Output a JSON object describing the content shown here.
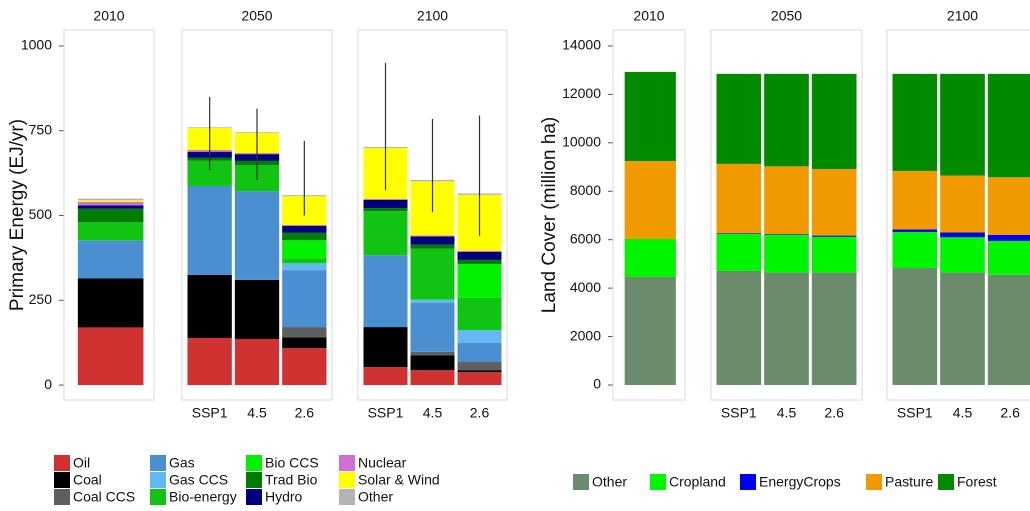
{
  "chart_data": [
    {
      "type": "bar",
      "stacked": true,
      "y_label": "Primary Energy (EJ/yr)",
      "facets": [
        {
          "label": "2010",
          "categories": [
            null
          ]
        },
        {
          "label": "2050",
          "categories": [
            "SSP1",
            "4.5",
            "2.6"
          ]
        },
        {
          "label": "2100",
          "categories": [
            "SSP1",
            "4.5",
            "2.6"
          ]
        }
      ],
      "ylim": [
        -44,
        1047
      ],
      "yticks": [
        0,
        250,
        500,
        750,
        1000
      ],
      "series": [
        {
          "name": "Oil",
          "color": "#d03232",
          "values": [
            170,
            139,
            136,
            109,
            53,
            44,
            38
          ]
        },
        {
          "name": "Coal",
          "color": "#000000",
          "values": [
            145,
            186,
            174,
            32,
            118,
            44,
            6
          ]
        },
        {
          "name": "Coal CCS",
          "color": "#5f5f5f",
          "values": [
            0,
            0,
            0,
            30,
            0,
            10,
            24
          ]
        },
        {
          "name": "Gas",
          "color": "#4a8fd0",
          "values": [
            112,
            262,
            262,
            168,
            212,
            145,
            56
          ]
        },
        {
          "name": "Gas CCS",
          "color": "#64b8f2",
          "values": [
            0,
            0,
            0,
            20,
            0,
            9,
            38
          ]
        },
        {
          "name": "Bio-energy",
          "color": "#12c412",
          "values": [
            53,
            75,
            77,
            15,
            130,
            150,
            95
          ]
        },
        {
          "name": "Bio CCS",
          "color": "#00f000",
          "values": [
            0,
            0,
            0,
            53,
            0,
            0,
            100
          ]
        },
        {
          "name": "Trad Bio",
          "color": "#007d00",
          "values": [
            40,
            8,
            12,
            22,
            9,
            12,
            12
          ]
        },
        {
          "name": "Hydro",
          "color": "#00007a",
          "values": [
            10,
            18,
            20,
            20,
            24,
            24,
            24
          ]
        },
        {
          "name": "Nuclear",
          "color": "#d070d0",
          "values": [
            10,
            5,
            3,
            3,
            3,
            3,
            3
          ]
        },
        {
          "name": "Solar & Wind",
          "color": "#ffff00",
          "values": [
            5,
            65,
            60,
            85,
            150,
            160,
            165
          ]
        },
        {
          "name": "Other",
          "color": "#b4b4b4",
          "values": [
            5,
            2,
            2,
            3,
            3,
            4,
            4
          ]
        }
      ],
      "error_low": [
        null,
        634,
        605,
        500,
        575,
        510,
        440
      ],
      "error_high": [
        null,
        850,
        815,
        720,
        950,
        785,
        795
      ]
    },
    {
      "type": "bar",
      "stacked": true,
      "y_label": "Land Cover (million ha)",
      "facets": [
        {
          "label": "2010",
          "categories": [
            null
          ]
        },
        {
          "label": "2050",
          "categories": [
            "SSP1",
            "4.5",
            "2.6"
          ]
        },
        {
          "label": "2100",
          "categories": [
            "SSP1",
            "4.5",
            "2.6"
          ]
        }
      ],
      "ylim": [
        -620,
        14660
      ],
      "yticks": [
        0,
        2000,
        4000,
        6000,
        8000,
        10000,
        12000,
        14000
      ],
      "series": [
        {
          "name": "Other",
          "color": "#6b8c6b",
          "values": [
            4460,
            4710,
            4650,
            4650,
            4830,
            4650,
            4550
          ]
        },
        {
          "name": "Cropland",
          "color": "#00f500",
          "values": [
            1570,
            1530,
            1550,
            1470,
            1490,
            1450,
            1400
          ]
        },
        {
          "name": "EnergyCrops",
          "color": "#0000f0",
          "values": [
            0,
            30,
            30,
            50,
            100,
            200,
            250
          ]
        },
        {
          "name": "Pasture",
          "color": "#f09a00",
          "values": [
            3220,
            2860,
            2800,
            2750,
            2420,
            2350,
            2380
          ]
        },
        {
          "name": "Forest",
          "color": "#008a00",
          "values": [
            3680,
            3720,
            3820,
            3930,
            4010,
            4200,
            4270
          ]
        }
      ]
    }
  ]
}
